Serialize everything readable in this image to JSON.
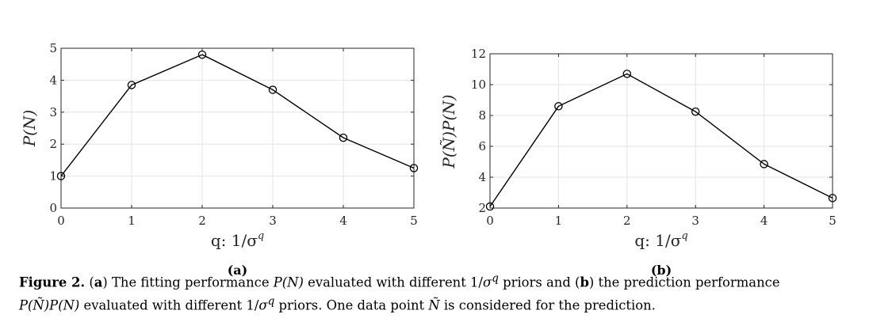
{
  "chart_data": [
    {
      "type": "line",
      "panel_label": "(a)",
      "x": [
        0,
        1,
        2,
        3,
        4,
        5
      ],
      "series": [
        {
          "values": [
            1.0,
            3.85,
            4.8,
            3.7,
            2.2,
            1.25
          ]
        }
      ],
      "xlabel": "q: 1/σ",
      "xlabel_sup": "q",
      "ylabel": "P(N)",
      "xlim": [
        0,
        5
      ],
      "ylim": [
        0,
        5
      ],
      "xticks": [
        "0",
        "1",
        "2",
        "3",
        "4",
        "5"
      ],
      "yticks": [
        "0",
        "1",
        "2",
        "3",
        "4",
        "5"
      ],
      "grid": true,
      "marker": "open-circle"
    },
    {
      "type": "line",
      "panel_label": "(b)",
      "x": [
        0,
        1,
        2,
        3,
        4,
        5
      ],
      "series": [
        {
          "values": [
            2.1,
            8.6,
            10.7,
            8.25,
            4.85,
            2.65
          ]
        }
      ],
      "xlabel": "q: 1/σ",
      "xlabel_sup": "q",
      "ylabel": "P(Ñ)P(N)",
      "xlim": [
        0,
        5
      ],
      "ylim": [
        2,
        12
      ],
      "xticks": [
        "0",
        "1",
        "2",
        "3",
        "4",
        "5"
      ],
      "yticks": [
        "2",
        "4",
        "6",
        "8",
        "10",
        "12"
      ],
      "grid": true,
      "marker": "open-circle"
    }
  ],
  "caption": {
    "label": "Figure 2.",
    "a_open": " (",
    "a": "a",
    "a_text": ") The fitting performance ",
    "pn": "P(N)",
    "mid1": " evaluated with different 1/",
    "sigma": "σ",
    "q": "q",
    "mid2": " priors and (",
    "b": "b",
    "b_text": ") the prediction performance ",
    "pnn": "P(Ñ)P(N)",
    "mid3": " evaluated with different 1/",
    "mid4": " priors. One data point ",
    "ntilde": "Ñ",
    "end": " is considered for the prediction."
  }
}
